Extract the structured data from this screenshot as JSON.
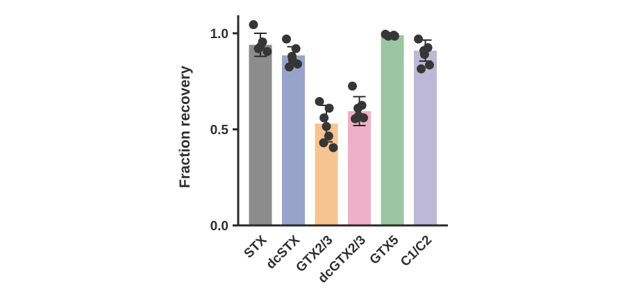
{
  "chart_data": {
    "type": "bar",
    "title": "",
    "xlabel": "",
    "ylabel": "Fraction recovery",
    "ylim": [
      0,
      1.0
    ],
    "yticks": [
      0.0,
      0.5,
      1.0
    ],
    "ytick_labels": [
      "0.0",
      "0.5",
      "1.0"
    ],
    "grid": false,
    "categories": [
      "STX",
      "dcSTX",
      "GTX2/3",
      "dcGTX2/3",
      "GTX5",
      "C1/C2"
    ],
    "values": [
      0.94,
      0.885,
      0.53,
      0.595,
      0.99,
      0.91
    ],
    "error_sd": [
      0.06,
      0.045,
      0.095,
      0.075,
      0.008,
      0.055
    ],
    "points": [
      [
        1.045,
        0.955,
        0.93,
        0.92,
        0.905
      ],
      [
        0.97,
        0.92,
        0.88,
        0.86,
        0.84,
        0.825
      ],
      [
        0.645,
        0.61,
        0.56,
        0.515,
        0.465,
        0.43,
        0.405
      ],
      [
        0.725,
        0.625,
        0.61,
        0.57,
        0.56,
        0.555
      ],
      [
        0.995,
        0.99,
        0.985,
        0.985
      ],
      [
        0.97,
        0.925,
        0.91,
        0.89,
        0.835,
        0.815
      ]
    ],
    "colors": [
      "#8c8c8c",
      "#98a3c9",
      "#f5c48f",
      "#eeb0c6",
      "#9bc5a3",
      "#bdb8d8"
    ],
    "point_color": "#363636"
  }
}
